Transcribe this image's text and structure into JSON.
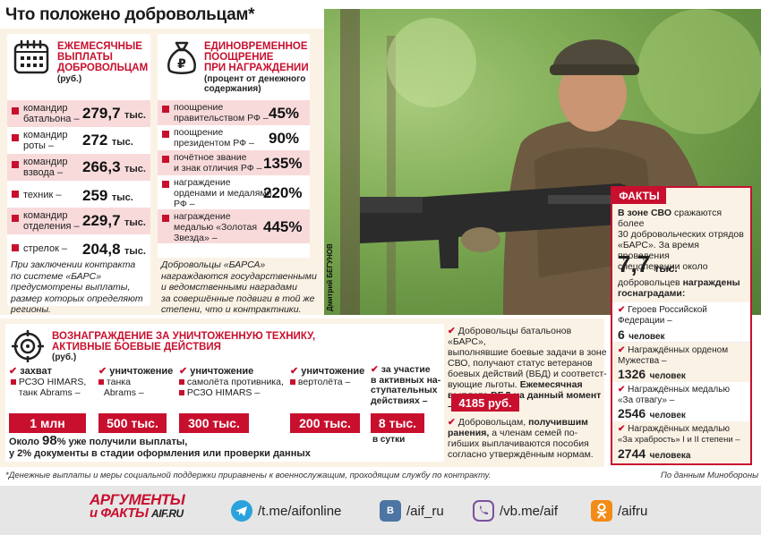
{
  "title": "Что положено добровольцам*",
  "monthly": {
    "heading": [
      "ЕЖЕМЕСЯЧНЫЕ",
      "ВЫПЛАТЫ",
      "ДОБРОВОЛЬЦАМ"
    ],
    "unit": "(руб.)",
    "rows": [
      {
        "label": [
          "командир",
          "батальона –"
        ],
        "value": "279,7",
        "unit": "тыс."
      },
      {
        "label": [
          "командир",
          "роты –"
        ],
        "value": "272",
        "unit": "тыс."
      },
      {
        "label": [
          "командир",
          "взвода –"
        ],
        "value": "266,3",
        "unit": "тыс."
      },
      {
        "label": [
          "техник –"
        ],
        "value": "259",
        "unit": "тыс."
      },
      {
        "label": [
          "командир",
          "отделения –"
        ],
        "value": "229,7",
        "unit": "тыс."
      },
      {
        "label": [
          "стрелок –"
        ],
        "value": "204,8",
        "unit": "тыс."
      }
    ],
    "note": [
      "При заключении контракта",
      "по системе «БАРС»",
      "предусмотрены выплаты,",
      "размер которых определяют",
      "регионы."
    ]
  },
  "onetime": {
    "heading": [
      "ЕДИНОВРЕМЕННОЕ",
      "ПООЩРЕНИЕ",
      "ПРИ НАГРАЖДЕНИИ"
    ],
    "subheading": [
      "(процент от денежного",
      "содержания)"
    ],
    "rows": [
      {
        "label": [
          "поощрение",
          "правительством РФ –"
        ],
        "value": "45%"
      },
      {
        "label": [
          "поощрение",
          "президентом РФ –"
        ],
        "value": "90%"
      },
      {
        "label": [
          "почётное звание",
          "и знак отличия РФ –"
        ],
        "value": "135%"
      },
      {
        "label": [
          "награждение",
          "орденами и медалями",
          "РФ –"
        ],
        "value": "220%"
      },
      {
        "label": [
          "награждение",
          "медалью «Золотая",
          "Звезда» –"
        ],
        "value": "445%"
      }
    ],
    "note": [
      "Добровольцы «БАРСА»",
      "награждаются государственными",
      "и ведомственными наградами",
      "за совершённые подвиги в той же",
      "степени, что и контрактники."
    ]
  },
  "photo_credit": "Дмитрий БЕГУНОВ",
  "facts": {
    "title": "ФАКТЫ",
    "intro_bold": "В зоне СВО",
    "intro": [
      "сражаются более",
      "30 добровольческих отрядов",
      "«БАРС». За время проведения",
      "спецоперации около"
    ],
    "big": "7,7",
    "big_unit": "тыс.",
    "after": [
      "добровольцев",
      "награждены",
      "госнаградами:"
    ],
    "items": [
      {
        "label": [
          "Героев Российской",
          "Федерации –"
        ],
        "value": "6",
        "unit": "человек"
      },
      {
        "label": [
          "Награждённых орденом",
          "Мужества –"
        ],
        "value": "1326",
        "unit": "человек"
      },
      {
        "label": [
          "Награждённых медалью",
          "«За отвагу» –"
        ],
        "value": "2546",
        "unit": "человек"
      },
      {
        "label": [
          "Награждённых медалью",
          "«За храбрость» I и II степени –"
        ],
        "value": "2744",
        "unit": "человека"
      }
    ]
  },
  "reward": {
    "heading": [
      "ВОЗНАГРАЖДЕНИЕ ЗА УНИЧТОЖЕННУЮ ТЕХНИКУ,",
      "АКТИВНЫЕ БОЕВЫЕ ДЕЙСТВИЯ"
    ],
    "unit": "(руб.)",
    "columns": [
      {
        "title": "захват",
        "items": [
          "РСЗО HIMARS,",
          "танк Abrams –"
        ],
        "amount": "1 млн"
      },
      {
        "title": "уничтожение",
        "items": [
          "танка",
          "Abrams –"
        ],
        "amount": "500 тыс."
      },
      {
        "title": "уничтожение",
        "items": [
          "самолёта противника,",
          "РСЗО HIMARS –"
        ],
        "amount": "300 тыс."
      },
      {
        "title": "уничтожение",
        "items": [
          "вертолёта –"
        ],
        "amount": "200 тыс."
      },
      {
        "title": [
          "за участие",
          "в активных на-",
          "ступательных",
          "действиях –"
        ],
        "items": [],
        "amount": "8 тыс.",
        "suffix": "в сутки"
      }
    ],
    "paid_pre": "Около",
    "paid_pct": "98",
    "paid_post": "% уже получили выплаты,",
    "paid_line2": "у 2% документы в стадии оформления или проверки данных"
  },
  "veterans": {
    "text": [
      "Добровольцы батальонов «БАРС»,",
      "выполнявшие боевые задачи в зоне",
      "СВО, получают статус ветеранов",
      "боевых действий (ВБД) и соответст-",
      "вующие льготы."
    ],
    "bold": [
      "Ежемесячная",
      "выплата ВБД на данный момент –"
    ],
    "amount": "4185 руб.",
    "wounded": [
      "Добровольцам,",
      "получившим",
      "ранения,",
      "а членам семей по-",
      "гибших выплачиваются пособия",
      "согласно утверждённым нормам."
    ]
  },
  "footnote": "*Денежные выплаты и меры социальной поддержки приравнены к военнослужащим, проходящим службу по контракту.",
  "source": "По данным Минобороны",
  "footer": {
    "logo": [
      "АРГУМЕНТЫ",
      "и ФАКТЫ",
      "AIF.RU"
    ],
    "links": [
      {
        "icon": "telegram-icon",
        "text": "/t.me/aifonline"
      },
      {
        "icon": "vk-icon",
        "text": "/aif_ru"
      },
      {
        "icon": "viber-icon",
        "text": "/vb.me/aif"
      },
      {
        "icon": "ok-icon",
        "text": "/aifru"
      }
    ]
  },
  "colors": {
    "accent": "#c8102e",
    "panel": "#fbf2e6",
    "footer": "#e6e6e6"
  }
}
